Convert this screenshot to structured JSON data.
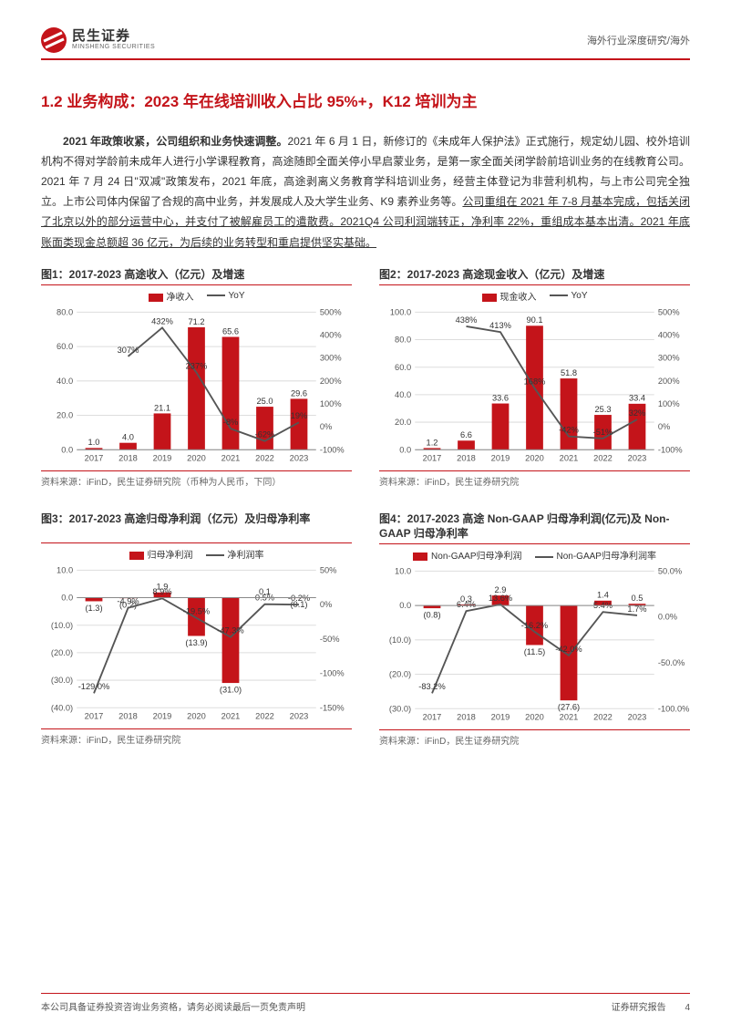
{
  "header": {
    "logo_cn": "民生证券",
    "logo_en": "MINSHENG SECURITIES",
    "breadcrumb": "海外行业深度研究/海外"
  },
  "section": {
    "title": "1.2 业务构成：2023 年在线培训收入占比 95%+，K12 培训为主"
  },
  "paragraph": {
    "lead_bold": "2021 年政策收紧，公司组织和业务快速调整。",
    "p1": "2021 年 6 月 1 日，新修订的《未成年人保护法》正式施行，规定幼儿园、校外培训机构不得对学龄前未成年人进行小学课程教育，高途随即全面关停小早启蒙业务，是第一家全面关闭学龄前培训业务的在线教育公司。2021 年 7 月 24 日\"双减\"政策发布，2021 年底，高途剥离义务教育学科培训业务，经营主体登记为非营利机构，与上市公司完全独立。上市公司体内保留了合规的高中业务，并发展成人及大学生业务、K9 素养业务等。",
    "p2_ul": "公司重组在 2021 年 7-8 月基本完成，包括关闭了北京以外的部分运营中心，并支付了被解雇员工的遣散费。2021Q4 公司利润端转正，净利率 22%，重组成本基本出清。2021 年底账面类现金总额超 36 亿元，为后续的业务转型和重启提供坚实基础。"
  },
  "charts": {
    "categories": [
      "2017",
      "2018",
      "2019",
      "2020",
      "2021",
      "2022",
      "2023"
    ],
    "styling": {
      "bar_color": "#c4141a",
      "line_color": "#555555",
      "grid_color": "#dddddd",
      "axis_color": "#888888",
      "label_fontsize": 9,
      "title_fontsize": 12,
      "bar_width_ratio": 0.5
    },
    "chart1": {
      "title": "图1：2017-2023 高途收入（亿元）及增速",
      "type": "bar+line",
      "legend_bar": "净收入",
      "legend_line": "YoY",
      "bar_values": [
        1.0,
        4.0,
        21.1,
        71.2,
        65.6,
        25.0,
        29.6
      ],
      "bar_labels": [
        "1.0",
        "4.0",
        "21.1",
        "71.2",
        "65.6",
        "25.0",
        "29.6"
      ],
      "line_values_pct": [
        null,
        307,
        432,
        237,
        -8,
        -62,
        19
      ],
      "line_labels": [
        "",
        "307%",
        "432%",
        "237%",
        "-8%",
        "-62%",
        "19%"
      ],
      "y_left": {
        "min": 0,
        "max": 80,
        "step": 20,
        "ticks": [
          "0.0",
          "20.0",
          "40.0",
          "60.0",
          "80.0"
        ]
      },
      "y_right": {
        "min": -100,
        "max": 500,
        "step": 100,
        "ticks": [
          "-100%",
          "0%",
          "100%",
          "200%",
          "300%",
          "400%",
          "500%"
        ]
      },
      "source": "资料来源：iFinD，民生证券研究院（币种为人民币，下同）"
    },
    "chart2": {
      "title": "图2：2017-2023 高途现金收入（亿元）及增速",
      "type": "bar+line",
      "legend_bar": "现金收入",
      "legend_line": "YoY",
      "bar_values": [
        1.2,
        6.6,
        33.6,
        90.1,
        51.8,
        25.3,
        33.4
      ],
      "bar_labels": [
        "1.2",
        "6.6",
        "33.6",
        "90.1",
        "51.8",
        "25.3",
        "33.4"
      ],
      "line_values_pct": [
        null,
        438,
        413,
        168,
        -42,
        -51,
        32
      ],
      "line_labels": [
        "",
        "438%",
        "413%",
        "168%",
        "-42%",
        "-51%",
        "32%"
      ],
      "y_left": {
        "min": 0,
        "max": 100,
        "step": 20,
        "ticks": [
          "0.0",
          "20.0",
          "40.0",
          "60.0",
          "80.0",
          "100.0"
        ]
      },
      "y_right": {
        "min": -100,
        "max": 500,
        "step": 100,
        "ticks": [
          "-100%",
          "0%",
          "100%",
          "200%",
          "300%",
          "400%",
          "500%"
        ]
      },
      "source": "资料来源：iFinD，民生证券研究院"
    },
    "chart3": {
      "title": "图3：2017-2023 高途归母净利润（亿元）及归母净利率",
      "type": "bar+line",
      "legend_bar": "归母净利润",
      "legend_line": "净利润率",
      "bar_values": [
        -1.3,
        -0.2,
        1.9,
        -13.9,
        -31.0,
        0.1,
        -0.1
      ],
      "bar_labels": [
        "(1.3)",
        "(0.2)",
        "1.9",
        "(13.9)",
        "(31.0)",
        "0.1",
        "(0.1)"
      ],
      "line_values_pct": [
        -129.0,
        -4.9,
        8.9,
        -19.5,
        -47.3,
        0.5,
        -0.2
      ],
      "line_labels": [
        "-129.0%",
        "-4.9%",
        "8.9%",
        "-19.5%",
        "-47.3%",
        "0.5%",
        "-0.2%"
      ],
      "y_left": {
        "min": -40,
        "max": 10,
        "step": 10,
        "ticks": [
          "(40.0)",
          "(30.0)",
          "(20.0)",
          "(10.0)",
          "0.0",
          "10.0"
        ]
      },
      "y_right": {
        "min": -150,
        "max": 50,
        "step": 50,
        "ticks": [
          "-150%",
          "-100%",
          "-50%",
          "0%",
          "50%"
        ]
      },
      "source": "资料来源：iFinD，民生证券研究院"
    },
    "chart4": {
      "title": "图4：2017-2023 高途 Non-GAAP 归母净利润(亿元)及 Non-GAAP 归母净利率",
      "type": "bar+line",
      "legend_bar": "Non-GAAP归母净利润",
      "legend_line": "Non-GAAP归母净利润率",
      "bar_values": [
        -0.8,
        0.3,
        2.9,
        -11.5,
        -27.6,
        1.4,
        0.5
      ],
      "bar_labels": [
        "(0.8)",
        "0.3",
        "2.9",
        "(11.5)",
        "(27.6)",
        "1.4",
        "0.5"
      ],
      "line_values_pct": [
        -83.2,
        6.4,
        13.6,
        -16.2,
        -42.0,
        5.4,
        1.7
      ],
      "line_labels": [
        "-83.2%",
        "6.4%",
        "13.6%",
        "-16.2%",
        "-42.0%",
        "5.4%",
        "1.7%"
      ],
      "y_left": {
        "min": -30,
        "max": 10,
        "step": 10,
        "ticks": [
          "(30.0)",
          "(20.0)",
          "(10.0)",
          "0.0",
          "10.0"
        ]
      },
      "y_right": {
        "min": -100,
        "max": 50,
        "step": 50,
        "ticks": [
          "-100.0%",
          "-50.0%",
          "0.0%",
          "50.0%"
        ]
      },
      "source": "资料来源：iFinD，民生证券研究院"
    }
  },
  "footer": {
    "left": "本公司具备证券投资咨询业务资格，请务必阅读最后一页免责声明",
    "right": "证券研究报告",
    "page": "4"
  }
}
